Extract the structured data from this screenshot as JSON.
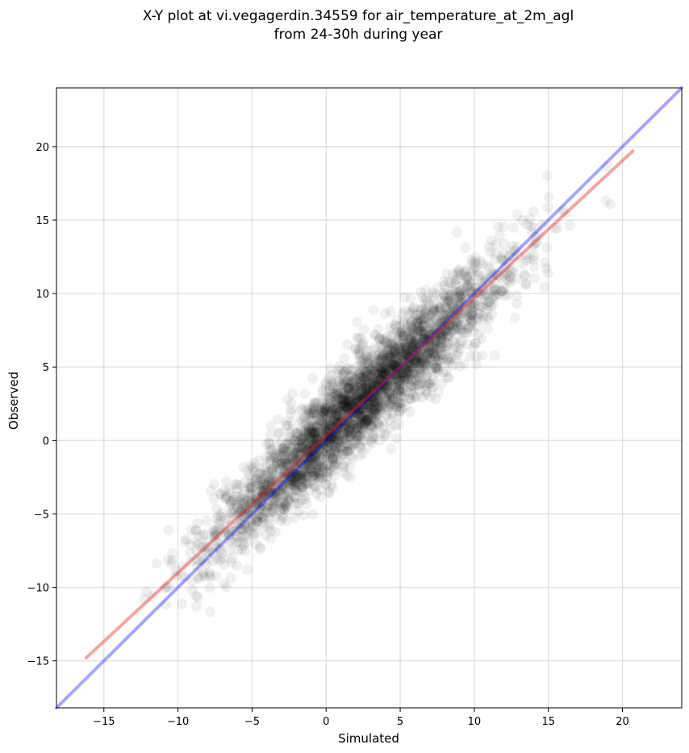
{
  "chart_data": {
    "type": "scatter",
    "title_lines": [
      "X-Y plot at vi.vegagerdin.34559 for air_temperature_at_2m_agl",
      "from 24-30h during year"
    ],
    "xlabel": "Simulated",
    "ylabel": "Observed",
    "xlim": [
      -18.2,
      24
    ],
    "ylim": [
      -18.2,
      24
    ],
    "x_ticks": [
      -15,
      -10,
      -5,
      0,
      5,
      10,
      15,
      20
    ],
    "y_ticks": [
      -15,
      -10,
      -5,
      0,
      5,
      10,
      15,
      20
    ],
    "x_tick_labels": [
      "−15",
      "−10",
      "−5",
      "0",
      "5",
      "10",
      "15",
      "20"
    ],
    "y_tick_labels": [
      "−15",
      "−10",
      "−5",
      "0",
      "5",
      "10",
      "15",
      "20"
    ],
    "grid": true,
    "legend": "none",
    "colors": {
      "points": "#000000",
      "identity_line": "#0000ff",
      "fit_line": "#e0211d"
    },
    "point_alpha": 0.06,
    "identity_line": {
      "x": [
        -18.2,
        24
      ],
      "y": [
        -18.2,
        24
      ]
    },
    "fit_line": {
      "x": [
        -16.2,
        20.7
      ],
      "y": [
        -14.8,
        19.7
      ]
    },
    "points": {
      "count": 3200,
      "x_range": [
        -16.3,
        20.8
      ],
      "y_range": [
        -12.8,
        22.1
      ],
      "noise_sd": 1.6
    }
  }
}
